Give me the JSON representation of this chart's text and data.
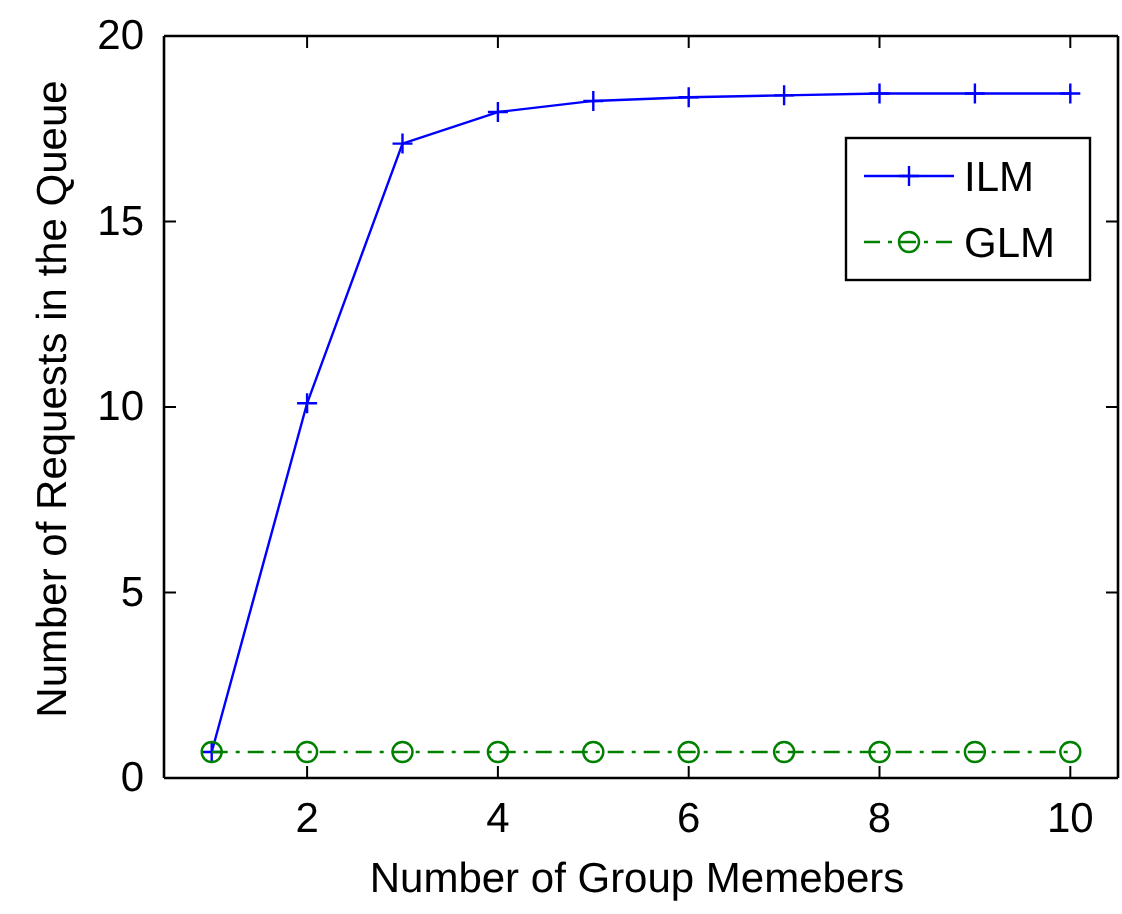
{
  "chart_data": {
    "type": "line",
    "xlabel": "Number of Group Memebers",
    "ylabel": "Number of Requests in the Queue",
    "x": [
      1,
      2,
      3,
      4,
      5,
      6,
      7,
      8,
      9,
      10
    ],
    "series": [
      {
        "name": "ILM",
        "color": "#0000ff",
        "marker": "cross",
        "line_style": "solid",
        "values": [
          0.7,
          10.1,
          17.1,
          17.95,
          18.25,
          18.35,
          18.4,
          18.45,
          18.45,
          18.45
        ]
      },
      {
        "name": "GLM",
        "color": "#008000",
        "marker": "circle",
        "line_style": "dashdot",
        "values": [
          0.7,
          0.7,
          0.7,
          0.7,
          0.7,
          0.7,
          0.7,
          0.7,
          0.7,
          0.7
        ]
      }
    ],
    "xlim": [
      0.5,
      10.5
    ],
    "xticks": [
      2,
      4,
      6,
      8,
      10
    ],
    "ylim": [
      0,
      20
    ],
    "yticks": [
      0,
      5,
      10,
      15,
      20
    ],
    "grid": false,
    "legend": "top right"
  }
}
